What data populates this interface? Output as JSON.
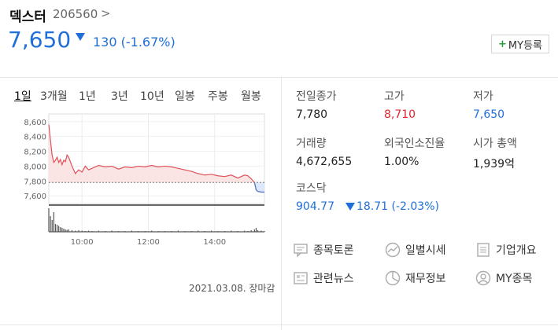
{
  "stock": {
    "name": "덱스터",
    "code": "206560",
    "chevron": ">",
    "price": "7,650",
    "change": "130 (-1.67%)",
    "my_button": "MY등록"
  },
  "tabs": [
    "1일",
    "3개월",
    "1년",
    "3년",
    "10년",
    "일봉",
    "주봉",
    "월봉"
  ],
  "chart_data": {
    "type": "line",
    "yticks": [
      "8,600",
      "8,400",
      "8,200",
      "8,000",
      "7,800",
      "7,600"
    ],
    "xticks": [
      "10:00",
      "12:00",
      "14:00"
    ],
    "ylim": [
      7560,
      8640
    ],
    "prev_close": 7780,
    "series": [
      {
        "x": [
          9.0,
          9.05,
          9.1,
          9.15,
          9.2,
          9.25,
          9.3,
          9.35,
          9.4,
          9.45,
          9.5,
          9.55,
          9.6,
          9.7,
          9.8,
          9.9,
          10.0,
          10.1,
          10.2,
          10.3,
          10.5,
          10.7,
          10.9,
          11.1,
          11.3,
          11.5,
          11.7,
          11.9,
          12.1,
          12.3,
          12.5,
          12.7,
          12.9,
          13.1,
          13.3,
          13.5,
          13.7,
          13.9,
          14.1,
          14.3,
          14.5,
          14.7,
          14.9,
          15.0,
          15.1,
          15.2,
          15.25,
          15.3,
          15.4,
          15.5
        ],
        "values": [
          8560,
          8350,
          8150,
          8050,
          8080,
          8120,
          8050,
          8090,
          8020,
          8080,
          8060,
          8150,
          8120,
          8000,
          7900,
          7950,
          7920,
          8000,
          7950,
          7970,
          8010,
          7990,
          8000,
          7960,
          7990,
          7980,
          8000,
          7990,
          8010,
          7990,
          8000,
          7990,
          7970,
          7950,
          7930,
          7900,
          7880,
          7890,
          7870,
          7860,
          7880,
          7840,
          7880,
          7870,
          7830,
          7780,
          7680,
          7660,
          7650,
          7650
        ]
      }
    ],
    "volume": [
      60,
      40,
      30,
      50,
      20,
      18,
      15,
      12,
      10,
      8,
      6,
      5,
      6,
      4,
      3,
      4,
      3,
      2,
      3,
      2,
      3,
      2,
      3,
      2,
      2,
      3,
      2,
      2,
      3,
      2,
      2,
      2,
      3,
      2,
      2,
      3,
      2,
      3,
      2,
      2,
      3,
      2,
      3,
      2,
      4,
      6,
      10,
      4,
      3,
      2
    ],
    "date_text": "2021.03.08. 장마감"
  },
  "stats": {
    "prev_close_label": "전일종가",
    "prev_close": "7,780",
    "high_label": "고가",
    "high": "8,710",
    "low_label": "저가",
    "low": "7,650",
    "volume_label": "거래량",
    "volume": "4,672,655",
    "foreign_label": "외국인소진율",
    "foreign": "1.00%",
    "mcap_label": "시가 총액",
    "mcap": "1,939억",
    "kosdaq_label": "코스닥",
    "kosdaq": "904.77",
    "kosdaq_change": "18.71 (-2.03%)"
  },
  "links": {
    "discussion": "종목토론",
    "daily": "일별시세",
    "company": "기업개요",
    "news": "관련뉴스",
    "finance": "재무정보",
    "my": "MY종목"
  },
  "colors": {
    "up": "#e0262f",
    "down": "#1e6fd9",
    "line": "#e0525a",
    "fill": "#fbe4e4"
  }
}
